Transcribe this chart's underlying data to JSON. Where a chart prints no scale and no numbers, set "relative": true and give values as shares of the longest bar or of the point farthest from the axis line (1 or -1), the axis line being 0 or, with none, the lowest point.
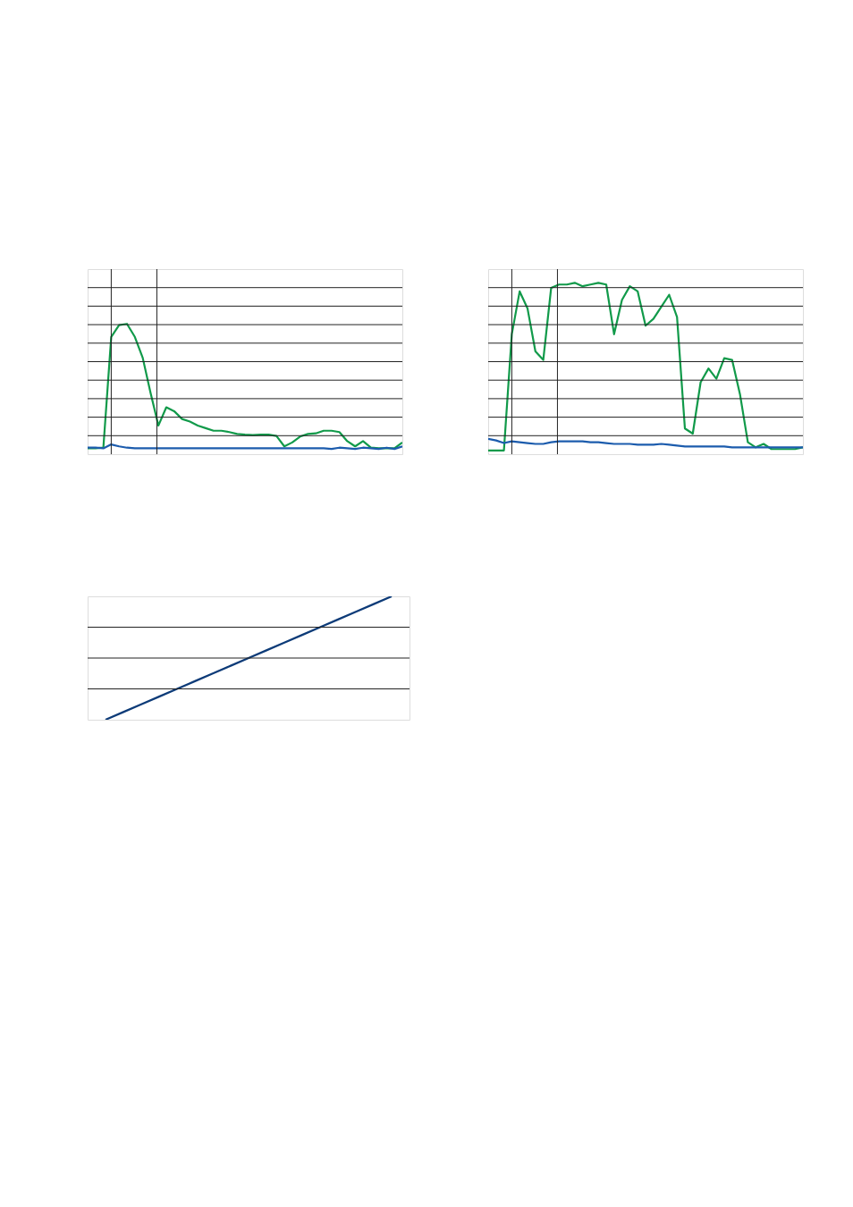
{
  "chart_data": [
    {
      "type": "line",
      "relative": true,
      "grid": true,
      "tick_labels": false,
      "categories": [
        null,
        null,
        null,
        null,
        null,
        null,
        null,
        null,
        null,
        null,
        null,
        null,
        null,
        null,
        null,
        null,
        null,
        null,
        null,
        null,
        null,
        null,
        null,
        null,
        null,
        null,
        null,
        null,
        null,
        null,
        null,
        null,
        null,
        null,
        null,
        null,
        null,
        null,
        null,
        null,
        null
      ],
      "series": [
        {
          "color": "#119a4a",
          "values": [
            0.045,
            0.045,
            0.05,
            0.9,
            0.99,
            1,
            0.9,
            0.74,
            0.47,
            0.22,
            0.36,
            0.33,
            0.27,
            0.25,
            0.22,
            0.2,
            0.18,
            0.18,
            0.17,
            0.155,
            0.15,
            0.147,
            0.15,
            0.15,
            0.14,
            0.06,
            0.09,
            0.135,
            0.155,
            0.16,
            0.18,
            0.18,
            0.17,
            0.1,
            0.06,
            0.1,
            0.05,
            0.045,
            0.045,
            0.045,
            0.09
          ]
        },
        {
          "color": "#1c5cad",
          "values": [
            0.05,
            0.05,
            0.045,
            0.075,
            0.06,
            0.05,
            0.045,
            0.045,
            0.045,
            0.045,
            0.045,
            0.045,
            0.045,
            0.045,
            0.045,
            0.045,
            0.045,
            0.045,
            0.045,
            0.045,
            0.045,
            0.045,
            0.045,
            0.045,
            0.045,
            0.045,
            0.045,
            0.045,
            0.045,
            0.045,
            0.045,
            0.04,
            0.05,
            0.045,
            0.04,
            0.05,
            0.045,
            0.04,
            0.05,
            0.04,
            0.06
          ]
        }
      ]
    },
    {
      "type": "line",
      "relative": true,
      "grid": true,
      "tick_labels": false,
      "categories": [
        null,
        null,
        null,
        null,
        null,
        null,
        null,
        null,
        null,
        null,
        null,
        null,
        null,
        null,
        null,
        null,
        null,
        null,
        null,
        null,
        null,
        null,
        null,
        null,
        null,
        null,
        null,
        null,
        null,
        null,
        null,
        null,
        null,
        null,
        null,
        null,
        null,
        null,
        null,
        null,
        null
      ],
      "series": [
        {
          "color": "#119a4a",
          "values": [
            0.022,
            0.022,
            0.022,
            0.7,
            0.95,
            0.85,
            0.6,
            0.55,
            0.97,
            0.99,
            0.99,
            1.0,
            0.98,
            0.99,
            1.0,
            0.99,
            0.7,
            0.9,
            0.98,
            0.95,
            0.75,
            0.79,
            0.86,
            0.93,
            0.8,
            0.15,
            0.12,
            0.42,
            0.5,
            0.44,
            0.56,
            0.55,
            0.35,
            0.07,
            0.04,
            0.06,
            0.03,
            0.03,
            0.03,
            0.03,
            0.04
          ]
        },
        {
          "color": "#1c5cad",
          "values": [
            0.09,
            0.08,
            0.065,
            0.075,
            0.07,
            0.065,
            0.06,
            0.06,
            0.07,
            0.075,
            0.075,
            0.075,
            0.075,
            0.07,
            0.07,
            0.065,
            0.06,
            0.06,
            0.06,
            0.055,
            0.055,
            0.055,
            0.06,
            0.055,
            0.05,
            0.045,
            0.045,
            0.045,
            0.045,
            0.045,
            0.045,
            0.04,
            0.04,
            0.04,
            0.04,
            0.04,
            0.04,
            0.04,
            0.04,
            0.04,
            0.04
          ]
        }
      ]
    },
    {
      "type": "line",
      "relative": true,
      "grid": "y",
      "tick_labels": false,
      "categories": [
        null,
        null,
        null,
        null,
        null,
        null,
        null,
        null,
        null,
        null,
        null,
        null,
        null,
        null,
        null,
        null,
        null,
        null,
        null
      ],
      "series": [
        {
          "color": "#0d3b78",
          "values": [
            null,
            0,
            0.0625,
            0.125,
            0.1875,
            0.25,
            0.3125,
            0.375,
            0.4375,
            0.5,
            0.5625,
            0.625,
            0.6875,
            0.75,
            0.8125,
            0.875,
            0.9375,
            1,
            null
          ]
        }
      ]
    }
  ]
}
